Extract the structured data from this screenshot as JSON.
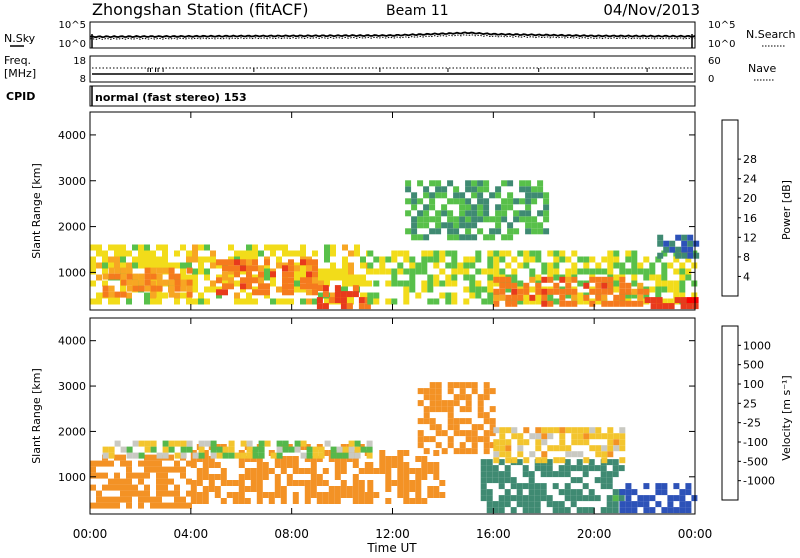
{
  "header": {
    "station": "Zhongshan Station (fitACF)",
    "beam": "Beam 11",
    "date": "04/Nov/2013"
  },
  "noise_panel": {
    "left_label": "N.Sky",
    "left_ticks": [
      "10^5",
      "10^0"
    ],
    "right_label": "N.Search",
    "right_ticks": [
      "10^5",
      "10^0"
    ]
  },
  "freq_panel": {
    "left_label": "Freq.",
    "left_unit": "[MHz]",
    "left_ticks": [
      "18",
      "8"
    ],
    "right_label": "Nave",
    "right_ticks": [
      "60",
      "0"
    ]
  },
  "cpid_panel": {
    "label": "CPID",
    "value": "normal (fast stereo) 153"
  },
  "power_panel": {
    "ylabel": "Slant Range [km]",
    "yticks": [
      "1000",
      "2000",
      "3000",
      "4000"
    ],
    "colorbar_label": "Power [dB]",
    "colorbar_ticks": [
      "4",
      "8",
      "12",
      "16",
      "20",
      "24",
      "28"
    ],
    "colors": [
      "#1e2cf0",
      "#2d52b8",
      "#3f8a72",
      "#58c04a",
      "#f2dc1a",
      "#f7a623",
      "#f57a1e",
      "#e83a1c",
      "#ff0000"
    ]
  },
  "velocity_panel": {
    "ylabel": "Slant Range [km]",
    "yticks": [
      "1000",
      "2000",
      "3000",
      "4000"
    ],
    "colorbar_label": "Velocity [m s⁻¹]",
    "colorbar_ticks": [
      "1000",
      "500",
      "100",
      "25",
      "-25",
      "-100",
      "-500",
      "-1000"
    ],
    "colors": [
      "#1e2cf0",
      "#2d52b8",
      "#3f8a72",
      "#55b84c",
      "#c9c9c2",
      "#f3c52e",
      "#f39225",
      "#ea5a1c",
      "#ff0000"
    ]
  },
  "xaxis": {
    "label": "Time UT",
    "ticks": [
      "00:00",
      "04:00",
      "08:00",
      "12:00",
      "16:00",
      "20:00",
      "00:00"
    ]
  },
  "chart_data": [
    {
      "type": "line",
      "x": [
        "00:00",
        "04:00",
        "08:00",
        "12:00",
        "14:00",
        "15:00",
        "16:00",
        "20:00",
        "24:00"
      ],
      "series": [
        {
          "name": "N.Sky",
          "values": [
            2.1,
            2.2,
            2.3,
            2.4,
            2.8,
            3.0,
            2.7,
            2.3,
            2.2
          ]
        },
        {
          "name": "N.Search",
          "values": [
            1.6,
            1.7,
            1.8,
            1.9,
            2.3,
            2.5,
            2.2,
            1.8,
            1.7
          ]
        }
      ],
      "ylim": [
        0,
        5
      ]
    },
    {
      "type": "line",
      "x": [
        "00:00",
        "24:00"
      ],
      "series": [
        {
          "name": "Freq.",
          "values": [
            10,
            10
          ]
        },
        {
          "name": "Nave",
          "values": [
            28,
            28
          ]
        }
      ]
    },
    {
      "type": "heatmap",
      "title": "",
      "xlabel": "Time UT",
      "ylabel": "Slant Range [km]",
      "xlim": [
        0,
        24
      ],
      "ylim": [
        180,
        4500
      ],
      "colorbar": "Power [dB]",
      "clim": [
        0,
        32
      ],
      "bands": [
        {
          "t0": 0.0,
          "t1": 11.0,
          "r0": 300,
          "r1": 1500,
          "value": 16
        },
        {
          "t0": 0.5,
          "t1": 4.0,
          "r0": 450,
          "r1": 1050,
          "value": 22
        },
        {
          "t0": 5.0,
          "t1": 9.0,
          "r0": 500,
          "r1": 1200,
          "value": 24
        },
        {
          "t0": 9.0,
          "t1": 11.0,
          "r0": 200,
          "r1": 700,
          "value": 26
        },
        {
          "t0": 11.0,
          "t1": 24.0,
          "r0": 300,
          "r1": 1400,
          "value": 14
        },
        {
          "t0": 12.5,
          "t1": 18.0,
          "r0": 1700,
          "r1": 3000,
          "value": 10
        },
        {
          "t0": 16.0,
          "t1": 22.0,
          "r0": 250,
          "r1": 900,
          "value": 24
        },
        {
          "t0": 22.0,
          "t1": 24.0,
          "r0": 200,
          "r1": 400,
          "value": 28
        },
        {
          "t0": 22.5,
          "t1": 24.0,
          "r0": 1300,
          "r1": 1700,
          "value": 6
        }
      ]
    },
    {
      "type": "heatmap",
      "title": "",
      "xlabel": "Time UT",
      "ylabel": "Slant Range [km]",
      "xlim": [
        0,
        24
      ],
      "ylim": [
        180,
        4500
      ],
      "colorbar": "Velocity [m s⁻¹]",
      "bands": [
        {
          "t0": 0.0,
          "t1": 4.0,
          "r0": 300,
          "r1": 1400,
          "value": -200
        },
        {
          "t0": 4.0,
          "t1": 11.0,
          "r0": 400,
          "r1": 1600,
          "value": -300
        },
        {
          "t0": 0.5,
          "t1": 11.0,
          "r0": 1400,
          "r1": 1700,
          "value": 0
        },
        {
          "t0": 11.0,
          "t1": 14.0,
          "r0": 400,
          "r1": 1500,
          "value": -400
        },
        {
          "t0": 13.0,
          "t1": 16.0,
          "r0": 1500,
          "r1": 3000,
          "value": -300
        },
        {
          "t0": 15.5,
          "t1": 21.0,
          "r0": 200,
          "r1": 1300,
          "value": 150
        },
        {
          "t0": 21.0,
          "t1": 24.0,
          "r0": 200,
          "r1": 800,
          "value": 800
        },
        {
          "t0": 16.0,
          "t1": 21.0,
          "r0": 1300,
          "r1": 2000,
          "value": -60
        }
      ]
    }
  ]
}
